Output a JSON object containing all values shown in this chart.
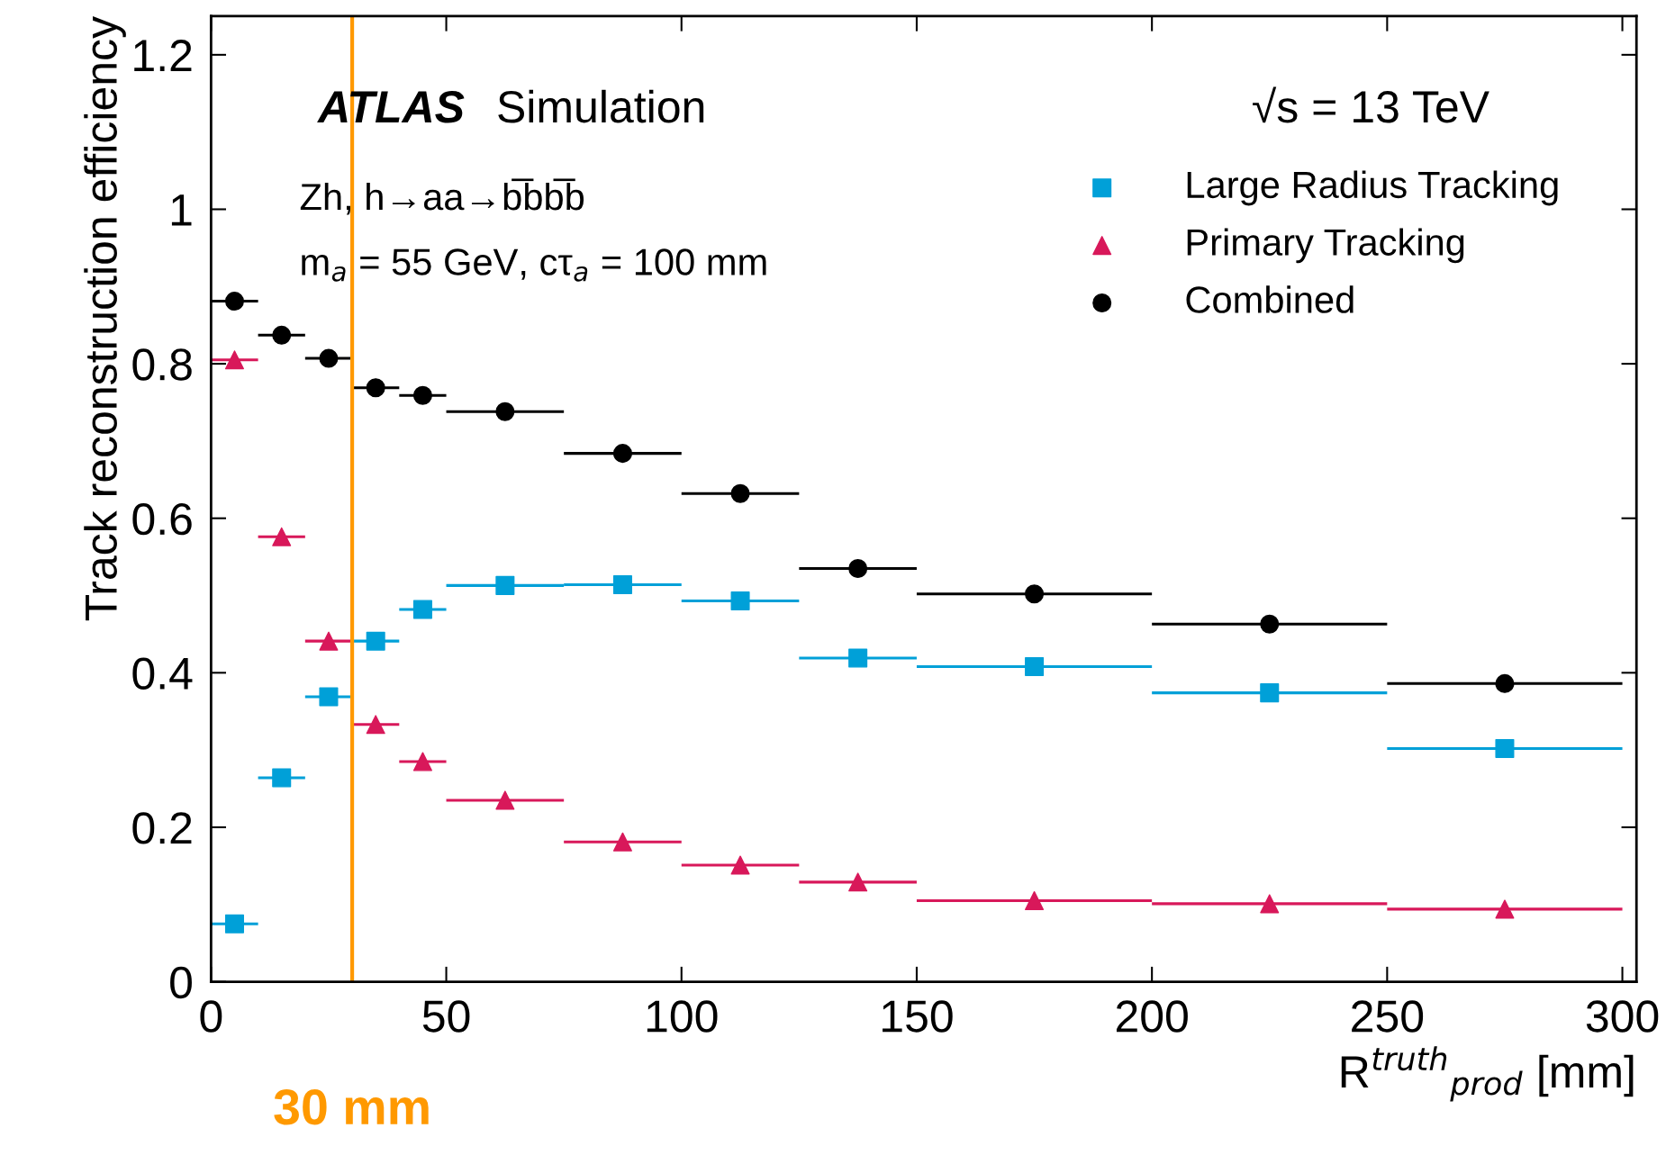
{
  "chart_data": {
    "type": "scatter",
    "xlabel": "R$^{truth}$$_{prod}$ [mm]",
    "ylabel": "Track reconstruction efficiency",
    "xlim": [
      0,
      303
    ],
    "ylim": [
      0,
      1.25
    ],
    "xticks": [
      0,
      50,
      100,
      150,
      200,
      250,
      300
    ],
    "yticks": [
      0,
      0.2,
      0.4,
      0.6,
      0.8,
      {
        "value": 1,
        "label": "1"
      },
      1.2
    ],
    "legend": "top right",
    "grid": false,
    "series": [
      {
        "name": "Large Radius Tracking",
        "color": "#00a0d8",
        "marker": "square",
        "x": [
          5,
          15,
          25,
          35,
          45,
          62.5,
          87.5,
          112.5,
          137.5,
          175,
          225,
          275
        ],
        "xerrors": [
          5,
          5,
          5,
          5,
          5,
          12.5,
          12.5,
          12.5,
          12.5,
          25,
          25,
          25
        ],
        "values": [
          0.075,
          0.264,
          0.369,
          0.441,
          0.482,
          0.513,
          0.514,
          0.493,
          0.419,
          0.408,
          0.374,
          0.302
        ]
      },
      {
        "name": "Primary Tracking",
        "color": "#d8185a",
        "marker": "triangle",
        "x": [
          5,
          15,
          25,
          35,
          45,
          62.5,
          87.5,
          112.5,
          137.5,
          175,
          225,
          275
        ],
        "xerrors": [
          5,
          5,
          5,
          5,
          5,
          12.5,
          12.5,
          12.5,
          12.5,
          25,
          25,
          25
        ],
        "values": [
          0.805,
          0.576,
          0.441,
          0.333,
          0.285,
          0.235,
          0.181,
          0.151,
          0.129,
          0.105,
          0.101,
          0.094
        ]
      },
      {
        "name": "Combined",
        "color": "#000000",
        "marker": "circle",
        "x": [
          5,
          15,
          25,
          35,
          45,
          62.5,
          87.5,
          112.5,
          137.5,
          175,
          225,
          275
        ],
        "xerrors": [
          5,
          5,
          5,
          5,
          5,
          12.5,
          12.5,
          12.5,
          12.5,
          25,
          25,
          25
        ],
        "values": [
          0.881,
          0.837,
          0.807,
          0.769,
          0.759,
          0.738,
          0.684,
          0.632,
          0.535,
          0.502,
          0.463,
          0.386
        ]
      }
    ],
    "ref_lines": [
      {
        "axis": "x",
        "value": 30,
        "label": "30 mm",
        "color": "#ff9900"
      }
    ],
    "annotations": [
      "ATLAS",
      "Simulation",
      "√s = 13 TeV",
      "Zh, h→aa→b̅bb̅b",
      "m$_{a}$ = 55 GeV, cτ$_{a}$ = 100 mm"
    ]
  }
}
